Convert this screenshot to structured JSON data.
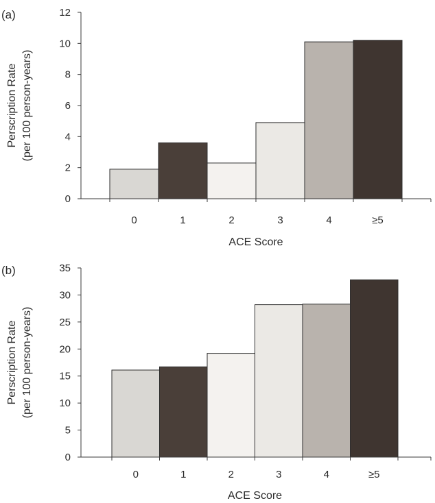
{
  "chart_data": [
    {
      "type": "bar",
      "panel_label": "(a)",
      "categories": [
        "0",
        "1",
        "2",
        "3",
        "4",
        "≥5"
      ],
      "values": [
        1.9,
        3.6,
        2.3,
        4.9,
        10.1,
        10.2
      ],
      "bar_colors": [
        "#d9d7d3",
        "#4a3f39",
        "#f4f2ef",
        "#ebe9e5",
        "#b9b3ad",
        "#3f3530"
      ],
      "xlabel": "ACE Score",
      "ylabel_lines": [
        "Perscription Rate",
        "(per 100 person-years)"
      ],
      "ylim": [
        0,
        12
      ],
      "yticks": [
        0,
        2,
        4,
        6,
        8,
        10,
        12
      ],
      "grid": false
    },
    {
      "type": "bar",
      "panel_label": "(b)",
      "categories": [
        "0",
        "1",
        "2",
        "3",
        "4",
        "≥5"
      ],
      "values": [
        16.1,
        16.7,
        19.2,
        28.2,
        28.3,
        32.8
      ],
      "bar_colors": [
        "#d9d7d3",
        "#4a3f39",
        "#f4f2ef",
        "#ebe9e5",
        "#b9b3ad",
        "#3f3530"
      ],
      "xlabel": "ACE Score",
      "ylabel_lines": [
        "Perscription Rate",
        "(per 100 person-years)"
      ],
      "ylim": [
        0,
        35
      ],
      "yticks": [
        0,
        5,
        10,
        15,
        20,
        25,
        30,
        35
      ],
      "grid": false
    }
  ]
}
